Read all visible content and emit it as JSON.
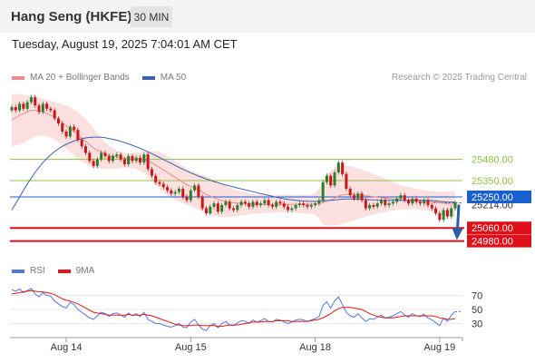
{
  "header": {
    "title": "Hang Seng (HKFE)",
    "interval": "30 MIN"
  },
  "timestamp": "Tuesday, August 19, 2025 7:04:01 AM CET",
  "legend": {
    "bollinger": "MA 20 + Bollinger Bands",
    "ma50": "MA 50",
    "copyright": "Research © 2025 Trading Central"
  },
  "rsi_legend": {
    "rsi": "RSI",
    "ma9": "9MA"
  },
  "colors": {
    "bollinger_fill": "#fbd5d5",
    "ma20": "#f08a8a",
    "ma50": "#3d5fb0",
    "resistance": "#8fc04a",
    "support": "#e0101a",
    "pivot": "#1a5fd0",
    "candle_up": "#2e7d2e",
    "candle_down": "#c81818",
    "rsi": "#5577dd",
    "rsi_ma": "#e01818"
  },
  "chart_data": [
    {
      "type": "candlestick",
      "title": "Hang Seng (HKFE)",
      "interval": "30 MIN",
      "ylim": [
        24900,
        25900
      ],
      "x_ticks": [
        "Aug 14",
        "Aug 15",
        "Aug 18",
        "Aug 19"
      ],
      "levels": [
        {
          "kind": "resistance",
          "value": 25480,
          "label": "25480.00"
        },
        {
          "kind": "resistance",
          "value": 25350,
          "label": "25350.00"
        },
        {
          "kind": "pivot",
          "value": 25250,
          "label": "25250.00"
        },
        {
          "kind": "last",
          "value": 25214,
          "label": "25214.00"
        },
        {
          "kind": "support",
          "value": 25060,
          "label": "25060.00"
        },
        {
          "kind": "support",
          "value": 24980,
          "label": "24980.00"
        }
      ],
      "close": [
        25800,
        25780,
        25820,
        25790,
        25830,
        25860,
        25810,
        25770,
        25820,
        25790,
        25780,
        25730,
        25700,
        25650,
        25620,
        25680,
        25660,
        25600,
        25560,
        25520,
        25470,
        25440,
        25480,
        25520,
        25500,
        25470,
        25500,
        25510,
        25480,
        25450,
        25500,
        25470,
        25490,
        25460,
        25510,
        25420,
        25380,
        25340,
        25330,
        25310,
        25290,
        25270,
        25280,
        25300,
        25250,
        25230,
        25290,
        25320,
        25250,
        25180,
        25150,
        25190,
        25210,
        25160,
        25200,
        25220,
        25180,
        25170,
        25200,
        25220,
        25210,
        25190,
        25220,
        25200,
        25210,
        25230,
        25200,
        25190,
        25220,
        25210,
        25190,
        25170,
        25180,
        25200,
        25210,
        25200,
        25190,
        25200,
        25210,
        25230,
        25340,
        25380,
        25320,
        25400,
        25460,
        25390,
        25300,
        25260,
        25240,
        25270,
        25230,
        25180,
        25200,
        25190,
        25210,
        25230,
        25200,
        25210,
        25220,
        25240,
        25260,
        25230,
        25210,
        25240,
        25220,
        25210,
        25230,
        25200,
        25180,
        25150,
        25110,
        25170,
        25130,
        25180,
        25214
      ],
      "ma20": [
        25720,
        25735,
        25750,
        25760,
        25770,
        25780,
        25780,
        25775,
        25770,
        25760,
        25750,
        25740,
        25725,
        25705,
        25685,
        25670,
        25650,
        25630,
        25610,
        25590,
        25570,
        25550,
        25535,
        25525,
        25515,
        25505,
        25500,
        25495,
        25490,
        25485,
        25485,
        25482,
        25480,
        25478,
        25476,
        25470,
        25460,
        25445,
        25430,
        25415,
        25400,
        25385,
        25370,
        25355,
        25340,
        25325,
        25315,
        25305,
        25295,
        25280,
        25265,
        25255,
        25245,
        25235,
        25228,
        25222,
        25218,
        25214,
        25212,
        25210,
        25210,
        25208,
        25206,
        25205,
        25204,
        25204,
        25203,
        25203,
        25203,
        25204,
        25204,
        25204,
        25204,
        25204,
        25204,
        25204,
        25204,
        25205,
        25206,
        25208,
        25215,
        25225,
        25232,
        25242,
        25255,
        25263,
        25266,
        25266,
        25265,
        25265,
        25262,
        25258,
        25255,
        25251,
        25248,
        25246,
        25243,
        25240,
        25238,
        25236,
        25233,
        25230,
        25228,
        25226,
        25224,
        25222,
        25222,
        25221,
        25220,
        25218,
        25214,
        25211,
        25208,
        25205,
        25203
      ],
      "bb_upper": [
        25880,
        25880,
        25878,
        25875,
        25872,
        25870,
        25866,
        25860,
        25852,
        25845,
        25838,
        25832,
        25825,
        25818,
        25810,
        25800,
        25785,
        25770,
        25750,
        25730,
        25700,
        25672,
        25640,
        25610,
        25585,
        25565,
        25548,
        25535,
        25525,
        25518,
        25515,
        25518,
        25520,
        25522,
        25526,
        25530,
        25532,
        25530,
        25525,
        25515,
        25500,
        25485,
        25468,
        25452,
        25438,
        25422,
        25410,
        25400,
        25392,
        25385,
        25378,
        25368,
        25355,
        25342,
        25330,
        25318,
        25308,
        25298,
        25290,
        25284,
        25278,
        25272,
        25268,
        25264,
        25262,
        25262,
        25262,
        25262,
        25262,
        25262,
        25262,
        25262,
        25262,
        25262,
        25262,
        25262,
        25262,
        25265,
        25272,
        25300,
        25360,
        25390,
        25410,
        25430,
        25440,
        25442,
        25440,
        25436,
        25430,
        25424,
        25418,
        25410,
        25400,
        25390,
        25380,
        25370,
        25360,
        25350,
        25340,
        25330,
        25322,
        25315,
        25310,
        25305,
        25300,
        25296,
        25292,
        25288,
        25285,
        25282,
        25282,
        25282,
        25283,
        25284,
        25285
      ],
      "bb_lower": [
        25560,
        25565,
        25570,
        25580,
        25595,
        25610,
        25620,
        25625,
        25625,
        25620,
        25612,
        25600,
        25585,
        25565,
        25545,
        25525,
        25505,
        25485,
        25468,
        25452,
        25440,
        25430,
        25425,
        25422,
        25420,
        25420,
        25422,
        25424,
        25426,
        25427,
        25428,
        25426,
        25420,
        25410,
        25395,
        25375,
        25350,
        25325,
        25300,
        25278,
        25260,
        25245,
        25232,
        25222,
        25212,
        25202,
        25192,
        25182,
        25172,
        25162,
        25150,
        25140,
        25135,
        25130,
        25128,
        25127,
        25128,
        25130,
        25133,
        25136,
        25140,
        25143,
        25146,
        25148,
        25150,
        25151,
        25152,
        25153,
        25154,
        25154,
        25154,
        25154,
        25154,
        25153,
        25152,
        25150,
        25148,
        25146,
        25142,
        25120,
        25080,
        25075,
        25075,
        25077,
        25080,
        25085,
        25092,
        25100,
        25108,
        25116,
        25124,
        25130,
        25136,
        25142,
        25148,
        25153,
        25158,
        25162,
        25166,
        25170,
        25172,
        25174,
        25175,
        25175,
        25174,
        25172,
        25168,
        25164,
        25158,
        25150,
        25142,
        25136,
        25131,
        25127,
        25124
      ],
      "ma50": [
        25170,
        25210,
        25250,
        25290,
        25330,
        25365,
        25400,
        25430,
        25460,
        25485,
        25508,
        25528,
        25545,
        25560,
        25572,
        25583,
        25592,
        25600,
        25606,
        25611,
        25614,
        25616,
        25616,
        25615,
        25612,
        25608,
        25603,
        25597,
        25590,
        25583,
        25575,
        25566,
        25557,
        25547,
        25537,
        25526,
        25515,
        25503,
        25491,
        25479,
        25467,
        25455,
        25443,
        25431,
        25420,
        25409,
        25398,
        25388,
        25378,
        25369,
        25360,
        25352,
        25344,
        25337,
        25330,
        25323,
        25317,
        25311,
        25305,
        25299,
        25294,
        25288,
        25282,
        25276,
        25270,
        25265,
        25260,
        25254,
        25248,
        25243,
        25239,
        25235,
        25232,
        25229,
        25227,
        25225,
        25224,
        25223,
        25223,
        25224,
        25226,
        25228,
        25229,
        25231,
        25234,
        25236,
        25237,
        25237,
        25236,
        25236,
        25235,
        25234,
        25233,
        25232,
        25231,
        25230,
        25229,
        25229,
        25229,
        25229,
        25229,
        25229,
        25229,
        25230,
        25230,
        25230,
        25230,
        25229,
        25228,
        25226,
        25223,
        25221,
        25219,
        25218,
        25218
      ]
    },
    {
      "type": "line",
      "title": "RSI",
      "ylim": [
        10,
        90
      ],
      "y_ticks": [
        70,
        50,
        30
      ],
      "series": [
        {
          "name": "RSI",
          "values": [
            78,
            76,
            79,
            74,
            77,
            80,
            72,
            68,
            74,
            70,
            69,
            62,
            58,
            54,
            52,
            60,
            57,
            50,
            46,
            42,
            38,
            36,
            41,
            46,
            44,
            40,
            44,
            45,
            42,
            39,
            45,
            41,
            44,
            40,
            46,
            36,
            33,
            30,
            30,
            28,
            26,
            25,
            27,
            30,
            25,
            24,
            32,
            36,
            28,
            22,
            20,
            27,
            30,
            24,
            30,
            33,
            28,
            27,
            31,
            34,
            33,
            30,
            35,
            32,
            34,
            37,
            33,
            32,
            36,
            35,
            32,
            30,
            32,
            35,
            36,
            35,
            33,
            35,
            37,
            40,
            56,
            61,
            52,
            62,
            68,
            57,
            46,
            41,
            39,
            44,
            38,
            33,
            37,
            36,
            39,
            42,
            38,
            39,
            41,
            44,
            47,
            42,
            39,
            44,
            41,
            40,
            43,
            38,
            35,
            31,
            27,
            38,
            33,
            42,
            47
          ]
        },
        {
          "name": "9MA",
          "values": [
            72,
            73,
            74,
            75,
            76,
            77,
            76,
            75,
            75,
            74,
            73,
            71,
            68,
            65,
            63,
            62,
            60,
            58,
            55,
            52,
            49,
            46,
            45,
            44,
            43,
            42,
            42,
            42,
            42,
            42,
            43,
            42,
            42,
            42,
            43,
            42,
            41,
            39,
            37,
            35,
            33,
            31,
            29,
            28,
            27,
            27,
            27,
            28,
            28,
            27,
            27,
            27,
            27,
            26,
            26,
            27,
            28,
            28,
            28,
            29,
            30,
            31,
            32,
            32,
            32,
            33,
            33,
            33,
            34,
            34,
            34,
            34,
            33,
            33,
            33,
            33,
            33,
            34,
            35,
            36,
            38,
            41,
            44,
            48,
            51,
            53,
            53,
            53,
            52,
            51,
            50,
            47,
            44,
            42,
            40,
            39,
            38,
            38,
            38,
            39,
            40,
            41,
            41,
            41,
            41,
            41,
            41,
            41,
            41,
            40,
            38,
            37,
            36,
            36,
            37
          ]
        }
      ]
    }
  ]
}
